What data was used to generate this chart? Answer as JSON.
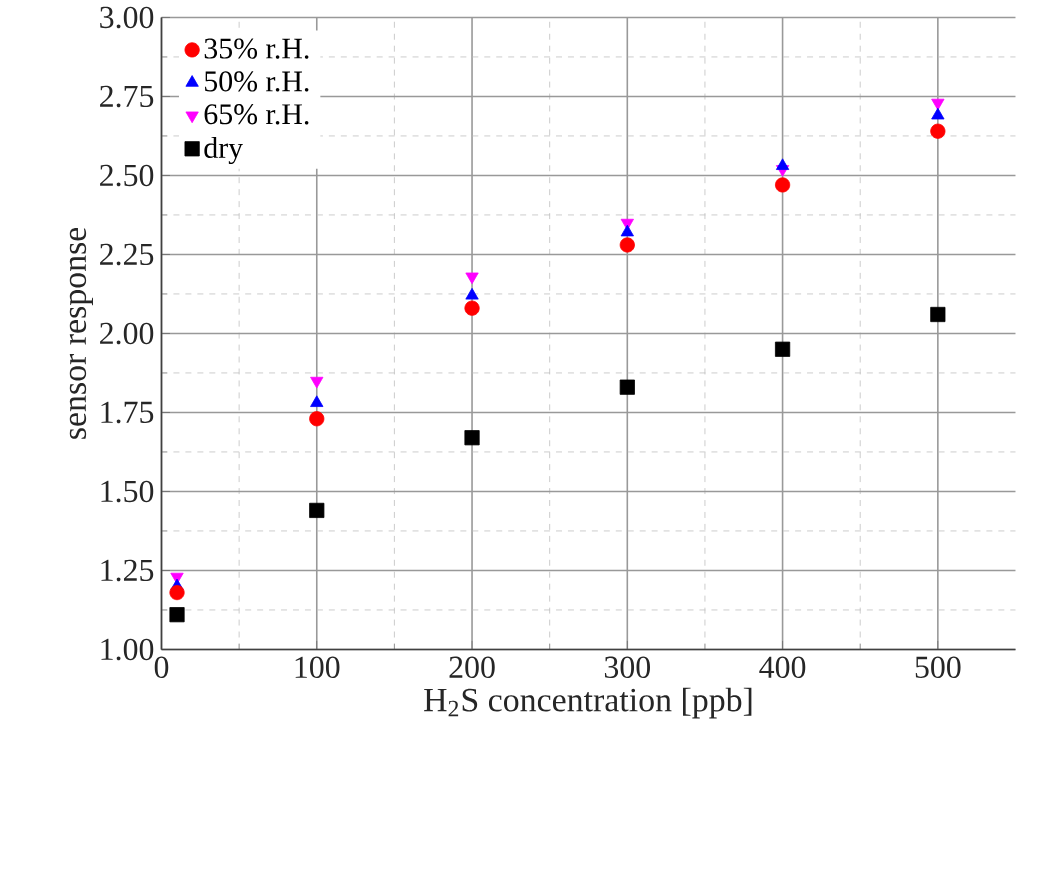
{
  "chart_data": {
    "type": "scatter",
    "xlabel": "H$_{2}$S concentration [ppb]",
    "ylabel": "sensor response",
    "x": [
      10,
      100,
      200,
      300,
      400,
      500
    ],
    "series": [
      {
        "name": "35% r.H.",
        "color": "#ff0000",
        "marker": "circle",
        "values": [
          1.18,
          1.73,
          2.08,
          2.28,
          2.47,
          2.64
        ]
      },
      {
        "name": "50% r.H.",
        "color": "#0000ff",
        "marker": "triangle",
        "values": [
          1.2,
          1.78,
          2.12,
          2.32,
          2.53,
          2.69
        ]
      },
      {
        "name": "65% r.H.",
        "color": "#ff00ff",
        "marker": "triangle down",
        "values": [
          1.23,
          1.85,
          2.18,
          2.35,
          2.52,
          2.73
        ]
      },
      {
        "name": "dry",
        "color": "#000000",
        "marker": "square",
        "values": [
          1.11,
          1.44,
          1.67,
          1.83,
          1.95,
          2.06
        ]
      }
    ],
    "xlim": [
      0,
      550
    ],
    "xticks": [
      0,
      100,
      200,
      300,
      400,
      500
    ],
    "ylim": [
      1.0,
      3.0
    ],
    "yticks": [
      {
        "value": 1.0,
        "label": "1.00"
      },
      {
        "value": 1.25,
        "label": "1.25"
      },
      {
        "value": 1.5,
        "label": "1.50"
      },
      {
        "value": 1.75,
        "label": "1.75"
      },
      {
        "value": 2.0,
        "label": "2.00"
      },
      {
        "value": 2.25,
        "label": "2.25"
      },
      {
        "value": 2.5,
        "label": "2.50"
      },
      {
        "value": 2.75,
        "label": "2.75"
      },
      {
        "value": 3.0,
        "label": "3.00"
      }
    ],
    "grid": true,
    "legend": "top left"
  }
}
